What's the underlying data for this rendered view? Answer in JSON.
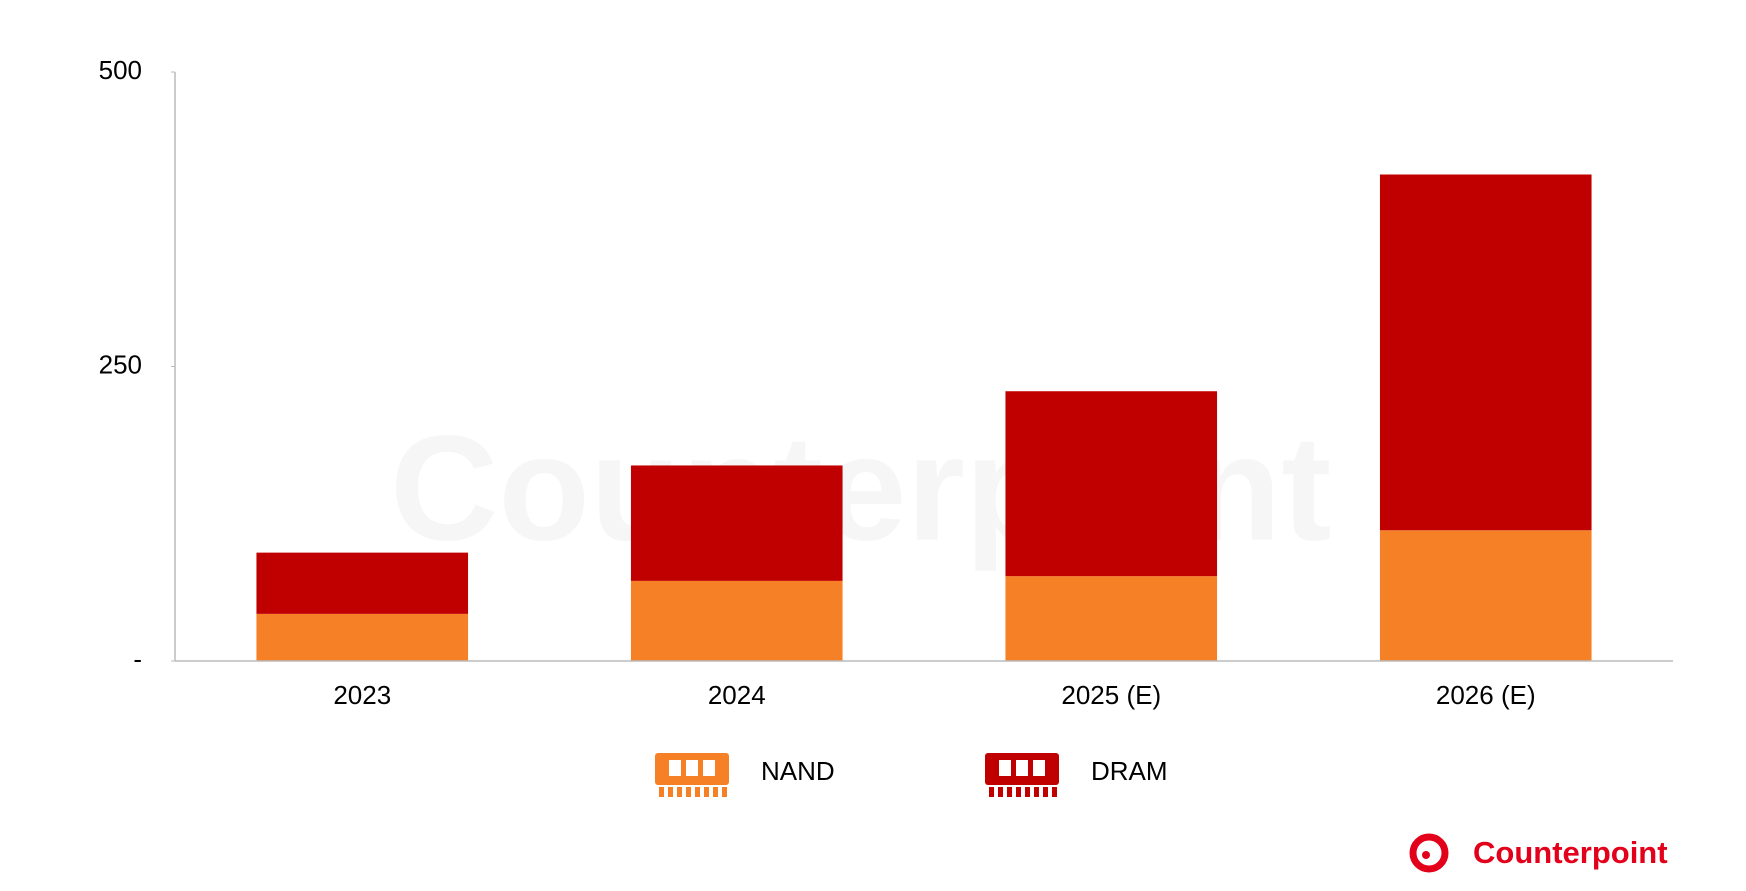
{
  "chart_data": {
    "type": "stacked-bar",
    "categories": [
      "2023",
      "2024",
      "2025 (E)",
      "2026 (E)"
    ],
    "series": [
      {
        "name": "NAND",
        "color": "#f58025",
        "values": [
          40,
          68,
          72,
          111
        ]
      },
      {
        "name": "DRAM",
        "color": "#c00000",
        "values": [
          52,
          98,
          157,
          302
        ]
      }
    ],
    "ylim": [
      0,
      500
    ],
    "yticks": [
      {
        "value": 0,
        "label": "-"
      },
      250,
      500
    ],
    "legend": "bottom",
    "brand": "Counterpoint"
  }
}
